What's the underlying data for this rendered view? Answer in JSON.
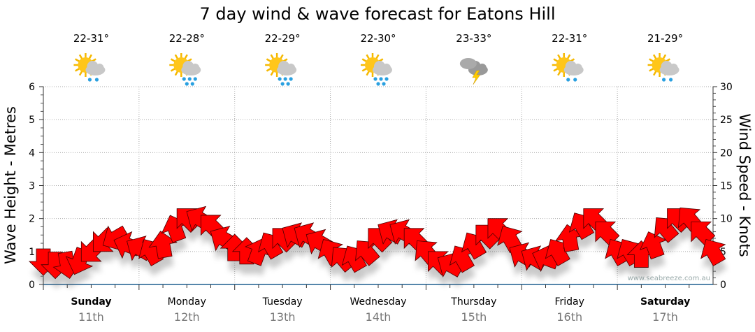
{
  "chart_data": {
    "type": "scatter",
    "title": "7 day wind & wave forecast for Eatons Hill",
    "ylabel_left": "Wave Height - Metres",
    "ylabel_right": "Wind Speed - Knots",
    "ylim_left": [
      0,
      6
    ],
    "ylim_right": [
      0,
      30
    ],
    "yticks_left": [
      "0",
      "1",
      "2",
      "3",
      "4",
      "5",
      "6"
    ],
    "yticks_right": [
      "0",
      "5",
      "10",
      "15",
      "20",
      "25",
      "30"
    ],
    "grid": true,
    "watermark": "www.seabreeze.com.au",
    "days": [
      {
        "day": "Sunday",
        "date": "11th",
        "bold": true,
        "temp": "22-31°",
        "icon": "sun-cloud-light-rain-icon"
      },
      {
        "day": "Monday",
        "date": "12th",
        "bold": false,
        "temp": "22-28°",
        "icon": "sun-cloud-rain-icon"
      },
      {
        "day": "Tuesday",
        "date": "13th",
        "bold": false,
        "temp": "22-29°",
        "icon": "sun-cloud-rain-icon"
      },
      {
        "day": "Wednesday",
        "date": "14th",
        "bold": false,
        "temp": "22-30°",
        "icon": "sun-cloud-rain-icon"
      },
      {
        "day": "Thursday",
        "date": "15th",
        "bold": false,
        "temp": "23-33°",
        "icon": "thunderstorm-icon"
      },
      {
        "day": "Friday",
        "date": "16th",
        "bold": false,
        "temp": "22-31°",
        "icon": "sun-cloud-light-rain-icon"
      },
      {
        "day": "Saturday",
        "date": "17th",
        "bold": true,
        "temp": "21-29°",
        "icon": "sun-cloud-light-rain-icon"
      }
    ],
    "wind_interval_hours": 3,
    "wind_knots": [
      3.5,
      3,
      3,
      3.5,
      5,
      6.5,
      7,
      6,
      5.5,
      5,
      6,
      8.5,
      10,
      10,
      9,
      7,
      5.5,
      5,
      5,
      6,
      7,
      7.5,
      7.5,
      6.5,
      5,
      4,
      4,
      5,
      7,
      8,
      8,
      7,
      5,
      3.5,
      3,
      4,
      6,
      7.5,
      8.5,
      7,
      4.5,
      4,
      4,
      5,
      7,
      9,
      10,
      8,
      5,
      5,
      4.5,
      6,
      8.5,
      10,
      10,
      8,
      5
    ],
    "wind_direction_deg": [
      180,
      180,
      170,
      200,
      225,
      225,
      240,
      290,
      300,
      330,
      350,
      340,
      315,
      300,
      315,
      300,
      0,
      0,
      20,
      330,
      315,
      300,
      300,
      300,
      330,
      320,
      330,
      320,
      315,
      300,
      300,
      315,
      320,
      315,
      300,
      330,
      330,
      315,
      315,
      330,
      300,
      300,
      290,
      330,
      350,
      330,
      315,
      315,
      330,
      330,
      0,
      340,
      320,
      315,
      320,
      315,
      330
    ]
  }
}
